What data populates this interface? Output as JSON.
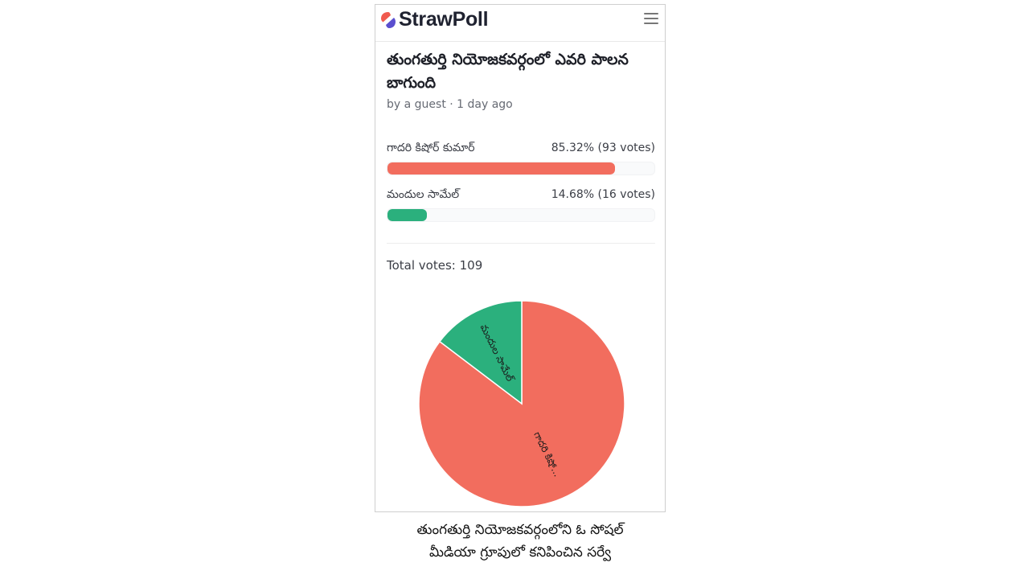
{
  "app": {
    "logo_text": "StrawPoll",
    "brand_colors": {
      "logo_red": "#f05a4f",
      "logo_purple": "#5b4fcf"
    },
    "menu_icon": "hamburger-menu-icon"
  },
  "poll": {
    "title": "తుంగతుర్తి నియోజకవర్గంలో ఎవరి పాలన బాగుంది",
    "meta": "by a guest · 1 day ago",
    "total_votes_text": "Total votes: 109",
    "options": [
      {
        "label": "గాదరి కిషోర్ కుమార్",
        "stats": "85.32% (93 votes)",
        "percent": 85.32,
        "color": "#f26d5e"
      },
      {
        "label": "మందుల సామేల్",
        "stats": "14.68% (16 votes)",
        "percent": 14.68,
        "color": "#2bb07d"
      }
    ]
  },
  "chart_data": {
    "type": "pie",
    "categories": [
      "గాదరి కిషోర్ కుమార్",
      "మందుల సామేల్"
    ],
    "values": [
      93,
      16
    ],
    "slice_labels": [
      "గాదరి కిషో...",
      "మందుల సామేల్"
    ],
    "colors": [
      "#f26d5e",
      "#2bb07d"
    ]
  },
  "caption": {
    "line1": "తుంగతుర్తి నియోజకవర్గంలోని ఓ సోషల్",
    "line2": "మీడియా గ్రూపులో కనిపించిన సర్వే"
  }
}
